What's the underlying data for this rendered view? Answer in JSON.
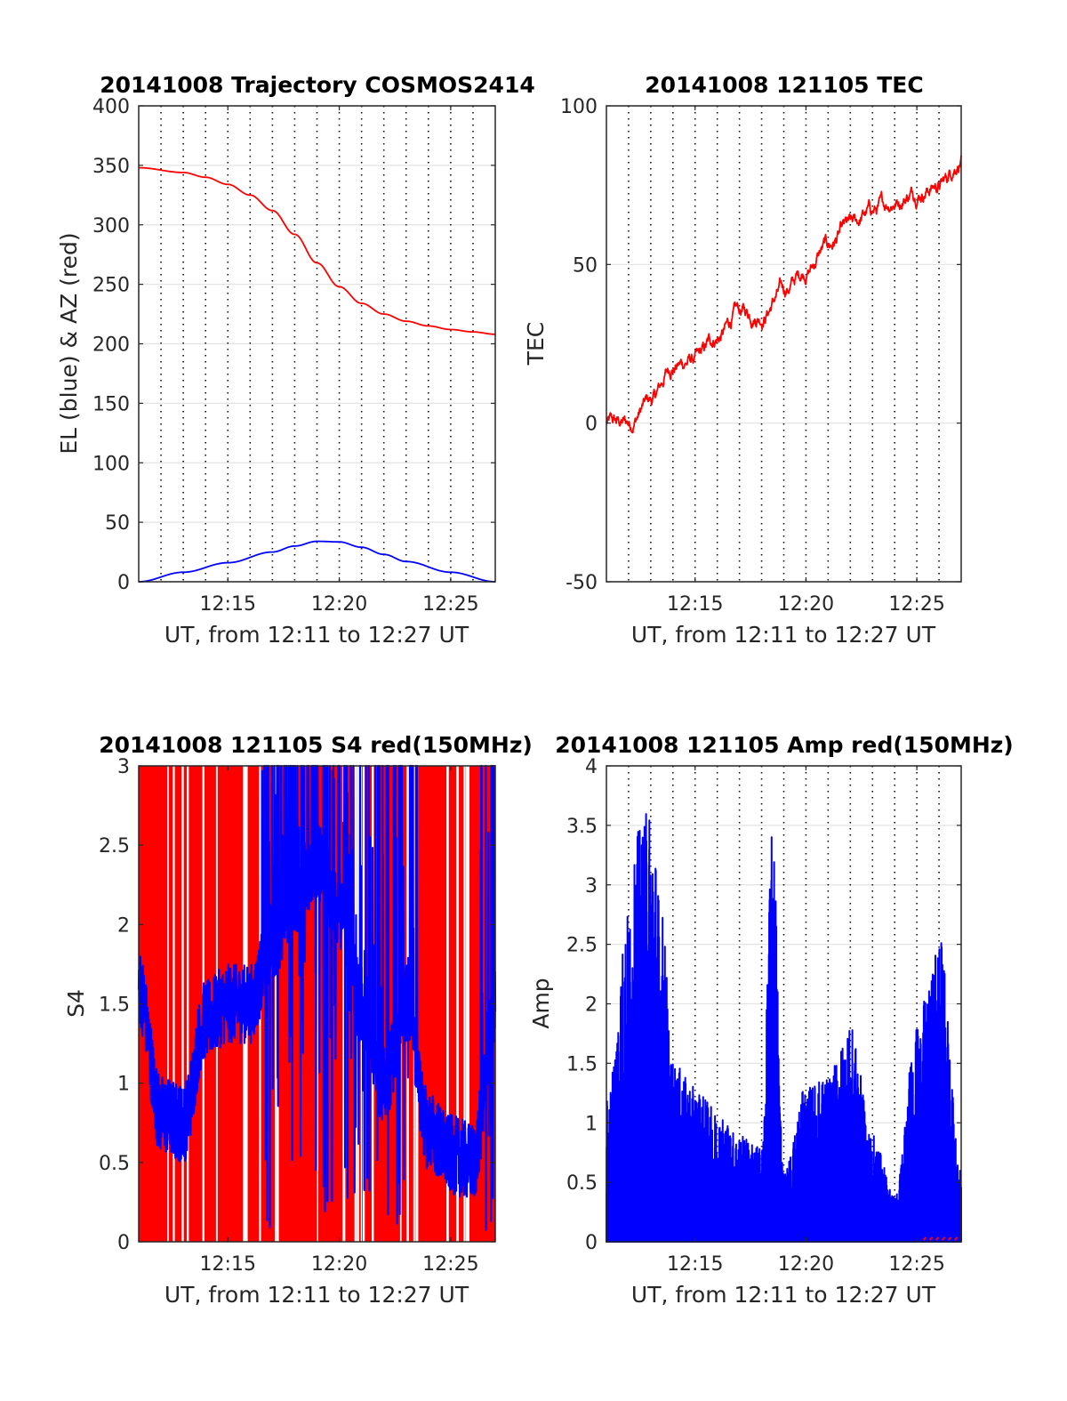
{
  "chart_data": [
    {
      "id": "trajectory",
      "type": "line",
      "title": "20141008 Trajectory COSMOS2414",
      "xlabel": "UT, from 12:11 to 12:27 UT",
      "ylabel": "EL (blue) & AZ (red)",
      "xlim": [
        "12:11",
        "12:27"
      ],
      "xticks": [
        "12:15",
        "12:20",
        "12:25"
      ],
      "ylim": [
        0,
        400
      ],
      "yticks": [
        "0",
        "50",
        "100",
        "150",
        "200",
        "250",
        "300",
        "350",
        "400"
      ],
      "grid": "horizontal solid, vertical dotted every minute",
      "series": [
        {
          "color": "#0000ff",
          "x": [
            "12:11",
            "12:13",
            "12:15",
            "12:17",
            "12:18",
            "12:19",
            "12:20",
            "12:21",
            "12:22",
            "12:23",
            "12:25",
            "12:27"
          ],
          "y": [
            0,
            8,
            16,
            25,
            30,
            34,
            33.5,
            29,
            23,
            17,
            8,
            0
          ]
        },
        {
          "color": "#ff0000",
          "x": [
            "12:11",
            "12:13",
            "12:14",
            "12:15",
            "12:16",
            "12:17",
            "12:18",
            "12:19",
            "12:20",
            "12:21",
            "12:22",
            "12:23",
            "12:24",
            "12:25",
            "12:26",
            "12:27"
          ],
          "y": [
            348,
            344,
            340,
            334,
            325,
            312,
            292,
            268,
            248,
            234,
            225,
            219,
            215,
            212,
            210,
            208
          ]
        }
      ]
    },
    {
      "id": "tec",
      "type": "line",
      "title": "20141008 121105 TEC",
      "xlabel": "UT, from 12:11 to 12:27 UT",
      "ylabel": "TEC",
      "xlim": [
        "12:11",
        "12:27"
      ],
      "xticks": [
        "12:15",
        "12:20",
        "12:25"
      ],
      "ylim": [
        -50,
        100
      ],
      "yticks": [
        "-50",
        "0",
        "50",
        "100"
      ],
      "grid": "horizontal solid, vertical dotted every minute",
      "series": [
        {
          "color": "#ff0000",
          "x": [
            "12:11",
            "12:12",
            "12:13",
            "12:14",
            "12:15",
            "12:16",
            "12:17",
            "12:18",
            "12:19",
            "12:20",
            "12:21",
            "12:22",
            "12:23",
            "12:24",
            "12:25",
            "12:26",
            "12:27"
          ],
          "y": [
            0,
            0,
            7,
            18,
            20,
            27,
            35,
            34,
            42,
            48,
            56,
            62,
            67,
            70,
            73,
            75,
            83
          ]
        }
      ]
    },
    {
      "id": "s4",
      "type": "line",
      "title": "20141008 121105 S4 red(150MHz)",
      "xlabel": "UT, from 12:11 to 12:27 UT",
      "ylabel": "S4",
      "xlim": [
        "12:11",
        "12:27"
      ],
      "xticks": [
        "12:15",
        "12:20",
        "12:25"
      ],
      "ylim": [
        0,
        3
      ],
      "yticks": [
        "0",
        "0.5",
        "1",
        "1.5",
        "2",
        "2.5",
        "3"
      ],
      "grid": "horizontal solid, vertical dotted every minute",
      "series": [
        {
          "color": "#ff0000",
          "note_values": "saturated 0-3 across the interval",
          "x": [
            "12:11",
            "12:27"
          ],
          "y": [
            3,
            3
          ]
        },
        {
          "color": "#0000ff",
          "x": [
            "12:11",
            "12:12",
            "12:13",
            "12:14",
            "12:15",
            "12:16",
            "12:17",
            "12:18",
            "12:19",
            "12:20",
            "12:21",
            "12:22",
            "12:23",
            "12:24",
            "12:25",
            "12:26",
            "12:27"
          ],
          "y": [
            1.6,
            0.8,
            0.75,
            1.4,
            1.5,
            1.5,
            1.9,
            2.2,
            2.4,
            2.1,
            1.5,
            1.0,
            1.5,
            0.7,
            0.55,
            0.5,
            1.5
          ]
        }
      ]
    },
    {
      "id": "amp",
      "type": "line",
      "title": "20141008 121105 Amp red(150MHz)",
      "xlabel": "UT, from 12:11 to 12:27 UT",
      "ylabel": "Amp",
      "xlim": [
        "12:11",
        "12:27"
      ],
      "xticks": [
        "12:15",
        "12:20",
        "12:25"
      ],
      "ylim": [
        0,
        4
      ],
      "yticks": [
        "0",
        "0.5",
        "1",
        "1.5",
        "2",
        "2.5",
        "3",
        "3.5",
        "4"
      ],
      "grid": "horizontal solid, vertical dotted every minute",
      "series": [
        {
          "color": "#0000ff",
          "x": [
            "12:11",
            "12:12",
            "12:12.5",
            "12:13",
            "12:13.5",
            "12:14",
            "12:15",
            "12:16",
            "12:17",
            "12:18",
            "12:18.5",
            "12:19",
            "12:20",
            "12:21",
            "12:22",
            "12:23",
            "12:24",
            "12:25",
            "12:25.5",
            "12:26",
            "12:27"
          ],
          "y": [
            1.2,
            2.8,
            3.5,
            3.7,
            2.8,
            1.5,
            1.3,
            1.1,
            0.9,
            0.8,
            3.5,
            0.6,
            1.3,
            1.4,
            1.8,
            0.9,
            0.4,
            1.8,
            2.1,
            2.6,
            0.6
          ]
        }
      ]
    }
  ]
}
